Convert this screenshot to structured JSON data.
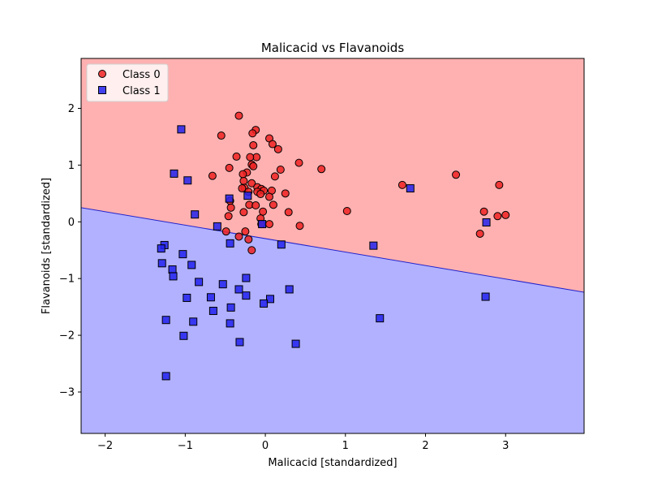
{
  "chart_data": {
    "type": "scatter",
    "title": "Malicacid vs Flavanoids",
    "xlabel": "Malicacid [standardized]",
    "ylabel": "Flavanoids [standardized]",
    "xlim": [
      -2.3,
      3.98
    ],
    "ylim": [
      -3.73,
      2.88
    ],
    "xticks": [
      -2,
      -1,
      0,
      1,
      2,
      3
    ],
    "yticks": [
      -3,
      -2,
      -1,
      0,
      1,
      2
    ],
    "xtick_labels": [
      "−2",
      "−1",
      "0",
      "1",
      "2",
      "3"
    ],
    "ytick_labels": [
      "−3",
      "−2",
      "−1",
      "0",
      "1",
      "2"
    ],
    "grid": false,
    "legend_position": "top-left",
    "decision_boundary": {
      "description_points": [
        [
          -2.3,
          0.25
        ],
        [
          3.98,
          -1.24
        ]
      ],
      "region_above_class": "Class 0",
      "region_below_class": "Class 1",
      "line_color": "#2222cc"
    },
    "region_colors": {
      "Class 0": "#ffb1b1",
      "Class 1": "#b1b1ff"
    },
    "series": [
      {
        "name": "Class 0",
        "marker": "circle",
        "color": "#ee2222",
        "points": [
          [
            -0.33,
            1.87
          ],
          [
            -0.12,
            1.62
          ],
          [
            -0.16,
            1.56
          ],
          [
            -0.55,
            1.52
          ],
          [
            0.05,
            1.47
          ],
          [
            0.09,
            1.37
          ],
          [
            -0.15,
            1.35
          ],
          [
            0.16,
            1.28
          ],
          [
            -0.36,
            1.15
          ],
          [
            -0.11,
            1.14
          ],
          [
            -0.19,
            1.14
          ],
          [
            0.42,
            1.04
          ],
          [
            -0.17,
            1.01
          ],
          [
            -0.15,
            0.98
          ],
          [
            -0.45,
            0.95
          ],
          [
            0.7,
            0.93
          ],
          [
            0.19,
            0.92
          ],
          [
            -0.23,
            0.87
          ],
          [
            -0.28,
            0.84
          ],
          [
            2.38,
            0.83
          ],
          [
            -0.66,
            0.81
          ],
          [
            0.12,
            0.8
          ],
          [
            -0.27,
            0.72
          ],
          [
            -0.17,
            0.68
          ],
          [
            1.71,
            0.65
          ],
          [
            2.92,
            0.65
          ],
          [
            -0.1,
            0.61
          ],
          [
            -0.26,
            0.6
          ],
          [
            -0.29,
            0.59
          ],
          [
            -0.05,
            0.58
          ],
          [
            -0.02,
            0.55
          ],
          [
            0.08,
            0.55
          ],
          [
            -0.21,
            0.53
          ],
          [
            -0.1,
            0.53
          ],
          [
            0.25,
            0.5
          ],
          [
            -0.06,
            0.49
          ],
          [
            0.05,
            0.44
          ],
          [
            -0.44,
            0.37
          ],
          [
            -0.2,
            0.3
          ],
          [
            -0.12,
            0.29
          ],
          [
            0.1,
            0.3
          ],
          [
            -0.43,
            0.25
          ],
          [
            -0.27,
            0.17
          ],
          [
            0.29,
            0.17
          ],
          [
            1.02,
            0.19
          ],
          [
            2.73,
            0.18
          ],
          [
            -0.03,
            0.18
          ],
          [
            3.0,
            0.12
          ],
          [
            2.9,
            0.1
          ],
          [
            -0.46,
            0.1
          ],
          [
            -0.06,
            0.06
          ],
          [
            0.05,
            -0.04
          ],
          [
            -0.05,
            -0.04
          ],
          [
            0.43,
            -0.07
          ],
          [
            -0.49,
            -0.17
          ],
          [
            -0.25,
            -0.17
          ],
          [
            2.68,
            -0.21
          ],
          [
            -0.33,
            -0.26
          ],
          [
            -0.21,
            -0.31
          ],
          [
            -0.17,
            -0.5
          ]
        ]
      },
      {
        "name": "Class 1",
        "marker": "square",
        "color": "#2222ee",
        "points": [
          [
            -1.05,
            1.63
          ],
          [
            -1.14,
            0.85
          ],
          [
            -0.97,
            0.73
          ],
          [
            1.81,
            0.59
          ],
          [
            -0.22,
            0.46
          ],
          [
            -0.45,
            0.41
          ],
          [
            -0.88,
            0.13
          ],
          [
            -0.6,
            -0.08
          ],
          [
            2.76,
            -0.01
          ],
          [
            -0.04,
            -0.04
          ],
          [
            -0.44,
            -0.38
          ],
          [
            0.2,
            -0.4
          ],
          [
            1.35,
            -0.42
          ],
          [
            -1.26,
            -0.41
          ],
          [
            -1.3,
            -0.47
          ],
          [
            -1.03,
            -0.57
          ],
          [
            -1.29,
            -0.73
          ],
          [
            -0.92,
            -0.76
          ],
          [
            -1.16,
            -0.84
          ],
          [
            -1.15,
            -0.96
          ],
          [
            -0.24,
            -0.99
          ],
          [
            -0.83,
            -1.06
          ],
          [
            -0.53,
            -1.1
          ],
          [
            -0.33,
            -1.19
          ],
          [
            0.3,
            -1.19
          ],
          [
            -0.24,
            -1.3
          ],
          [
            2.75,
            -1.32
          ],
          [
            -0.98,
            -1.34
          ],
          [
            -0.68,
            -1.33
          ],
          [
            0.06,
            -1.36
          ],
          [
            -0.02,
            -1.44
          ],
          [
            -0.43,
            -1.51
          ],
          [
            -0.65,
            -1.57
          ],
          [
            1.43,
            -1.7
          ],
          [
            -1.24,
            -1.73
          ],
          [
            -0.9,
            -1.76
          ],
          [
            -0.44,
            -1.79
          ],
          [
            -1.02,
            -2.01
          ],
          [
            -0.32,
            -2.12
          ],
          [
            0.38,
            -2.15
          ],
          [
            -1.24,
            -2.72
          ]
        ]
      }
    ]
  }
}
